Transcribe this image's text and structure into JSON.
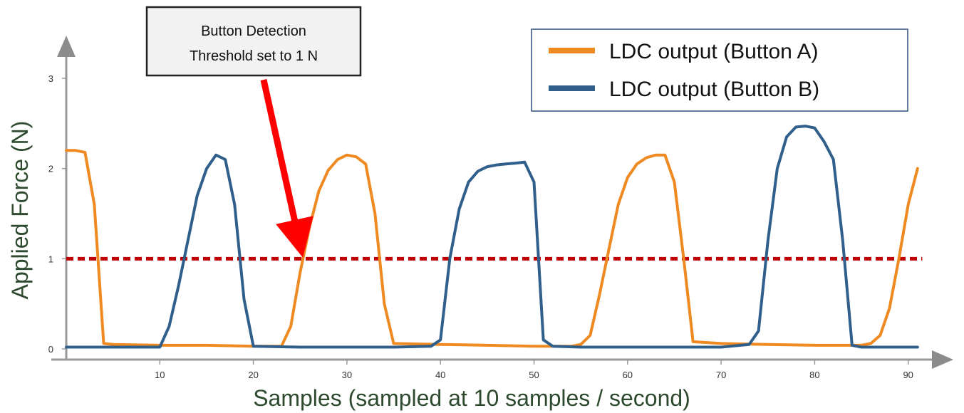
{
  "chart_data": {
    "type": "line",
    "xlabel": "Samples (sampled at 10 samples / second)",
    "ylabel": "Applied Force (N)",
    "xlim": [
      0,
      91
    ],
    "ylim": [
      0,
      3
    ],
    "xticks": [
      10,
      20,
      30,
      40,
      50,
      60,
      70,
      80,
      90
    ],
    "yticks": [
      0,
      1,
      2,
      3
    ],
    "grid": false,
    "legend_position": "top-right",
    "threshold": {
      "y": 1,
      "style": "dashed",
      "color": "#c00000"
    },
    "callout": {
      "lines": [
        "Button Detection",
        "Threshold set to 1 N"
      ],
      "points_to": {
        "x": 25,
        "y": 1
      },
      "arrow_color": "#ff0000"
    },
    "series": [
      {
        "name": "LDC output (Button A)",
        "color": "#ef8a22",
        "x": [
          0,
          1,
          2,
          3,
          4,
          5,
          10,
          15,
          20,
          23,
          24,
          25,
          26,
          27,
          28,
          29,
          30,
          31,
          32,
          33,
          34,
          35,
          40,
          45,
          50,
          54,
          55,
          56,
          57,
          58,
          59,
          60,
          61,
          62,
          63,
          64,
          65,
          66,
          67,
          70,
          75,
          80,
          85,
          86,
          87,
          88,
          89,
          90,
          91
        ],
        "y": [
          2.2,
          2.2,
          2.18,
          1.6,
          0.06,
          0.05,
          0.04,
          0.04,
          0.03,
          0.03,
          0.25,
          0.85,
          1.35,
          1.75,
          1.98,
          2.1,
          2.15,
          2.13,
          2.05,
          1.5,
          0.5,
          0.06,
          0.05,
          0.04,
          0.03,
          0.03,
          0.05,
          0.15,
          0.6,
          1.1,
          1.6,
          1.9,
          2.05,
          2.12,
          2.15,
          2.15,
          1.85,
          1.0,
          0.08,
          0.06,
          0.05,
          0.04,
          0.04,
          0.06,
          0.15,
          0.45,
          1.0,
          1.6,
          2.0
        ]
      },
      {
        "name": "LDC output (Button B)",
        "color": "#2f5f8a",
        "x": [
          0,
          5,
          10,
          11,
          12,
          13,
          14,
          15,
          16,
          17,
          18,
          19,
          20,
          25,
          30,
          35,
          39,
          40,
          41,
          42,
          43,
          44,
          45,
          46,
          47,
          48,
          49,
          50,
          51,
          52,
          55,
          60,
          65,
          70,
          73,
          74,
          75,
          76,
          77,
          78,
          79,
          80,
          81,
          82,
          83,
          84,
          85,
          91
        ],
        "y": [
          0.02,
          0.02,
          0.02,
          0.25,
          0.7,
          1.2,
          1.7,
          2.0,
          2.15,
          2.1,
          1.6,
          0.55,
          0.03,
          0.02,
          0.02,
          0.02,
          0.03,
          0.1,
          1.0,
          1.55,
          1.85,
          1.97,
          2.02,
          2.04,
          2.05,
          2.06,
          2.07,
          1.85,
          0.1,
          0.03,
          0.02,
          0.02,
          0.02,
          0.02,
          0.05,
          0.2,
          1.2,
          2.0,
          2.35,
          2.46,
          2.47,
          2.45,
          2.3,
          2.1,
          1.2,
          0.04,
          0.02,
          0.02
        ]
      }
    ]
  }
}
